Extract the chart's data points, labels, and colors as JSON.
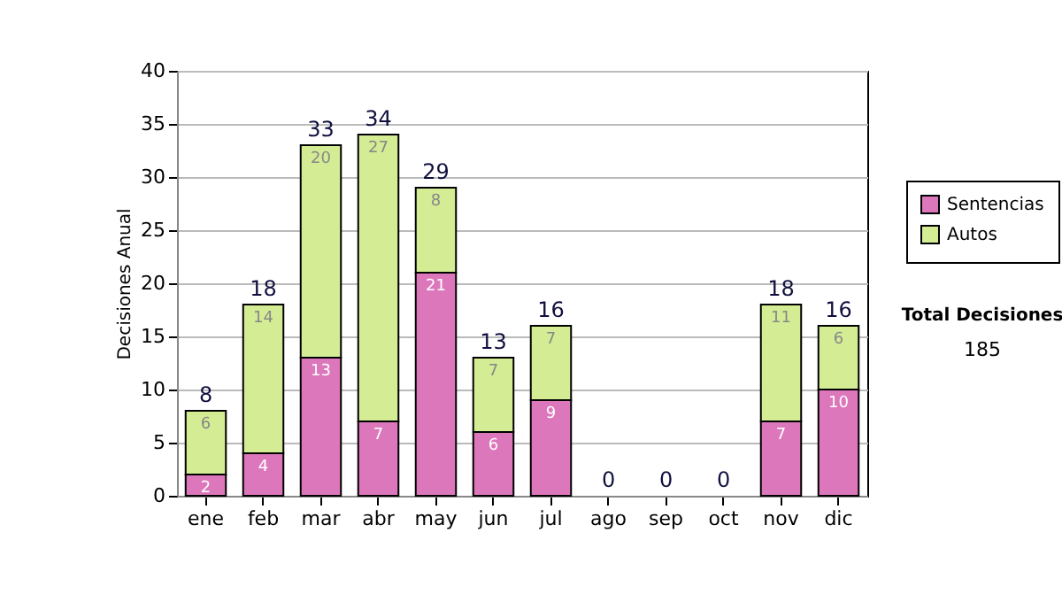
{
  "chart_data": {
    "type": "bar",
    "stacked": true,
    "ylabel": "Decisiones Anual",
    "categories": [
      "ene",
      "feb",
      "mar",
      "abr",
      "may",
      "jun",
      "jul",
      "ago",
      "sep",
      "oct",
      "nov",
      "dic"
    ],
    "series": [
      {
        "name": "Sentencias",
        "color": "#dd77bb",
        "values": [
          2,
          4,
          13,
          7,
          21,
          6,
          9,
          0,
          0,
          0,
          7,
          10
        ],
        "value_labels": [
          "2",
          "4",
          "13",
          "7",
          "21",
          "6",
          "9",
          null,
          null,
          null,
          "7",
          "10"
        ]
      },
      {
        "name": "Autos",
        "color": "#d4ec94",
        "values": [
          6,
          14,
          20,
          27,
          8,
          7,
          7,
          0,
          0,
          0,
          11,
          6
        ],
        "value_labels": [
          "6",
          "14",
          "20",
          "27",
          "8",
          "7",
          "7",
          null,
          null,
          null,
          "11",
          "6"
        ]
      }
    ],
    "totals": [
      "8",
      "18",
      "33",
      "34",
      "29",
      "13",
      "16",
      "0",
      "0",
      "0",
      "18",
      "16"
    ],
    "ylim": [
      0,
      40
    ],
    "yticks": [
      0,
      5,
      10,
      15,
      20,
      25,
      30,
      35,
      40
    ],
    "grid": "y",
    "legend": "right",
    "annotations": [
      "Total Decisiones",
      "185"
    ]
  }
}
